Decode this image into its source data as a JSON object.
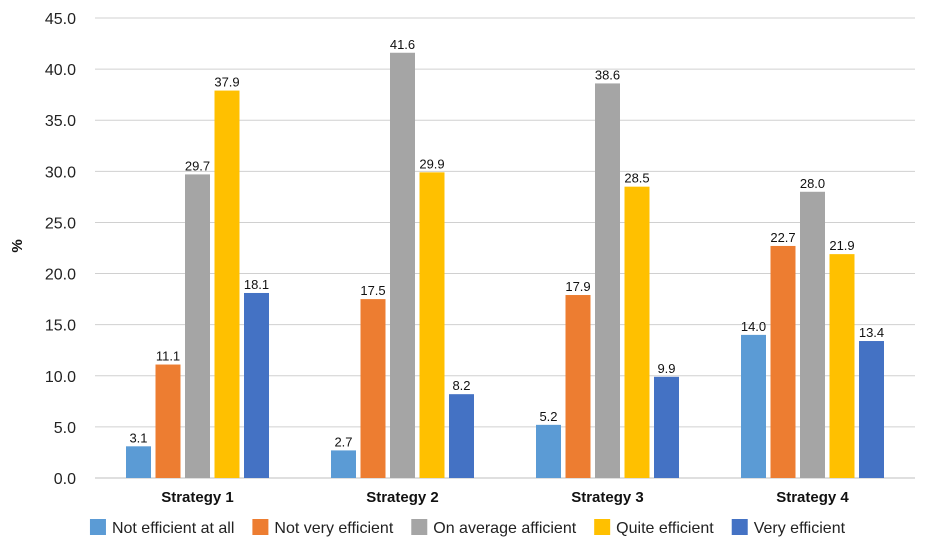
{
  "chart_data": {
    "type": "bar",
    "title": "",
    "xlabel": "",
    "ylabel": "%",
    "ylim": [
      0,
      45
    ],
    "yticks": [
      "0.0",
      "5.0",
      "10.0",
      "15.0",
      "20.0",
      "25.0",
      "30.0",
      "35.0",
      "40.0",
      "45.0"
    ],
    "grid": true,
    "legend_position": "bottom",
    "categories": [
      "Strategy 1",
      "Strategy 2",
      "Strategy 3",
      "Strategy 4"
    ],
    "series": [
      {
        "name": "Not efficient at all",
        "color": "#5b9bd5",
        "values": [
          3.1,
          2.7,
          5.2,
          14.0
        ]
      },
      {
        "name": "Not very efficient",
        "color": "#ed7d31",
        "values": [
          11.1,
          17.5,
          17.9,
          22.7
        ]
      },
      {
        "name": "On average afficient",
        "color": "#a5a5a5",
        "values": [
          29.7,
          41.6,
          38.6,
          28.0
        ]
      },
      {
        "name": "Quite efficient",
        "color": "#ffc000",
        "values": [
          37.9,
          29.9,
          28.5,
          21.9
        ]
      },
      {
        "name": "Very efficient",
        "color": "#4472c4",
        "values": [
          18.1,
          8.2,
          9.9,
          13.4
        ]
      }
    ]
  }
}
